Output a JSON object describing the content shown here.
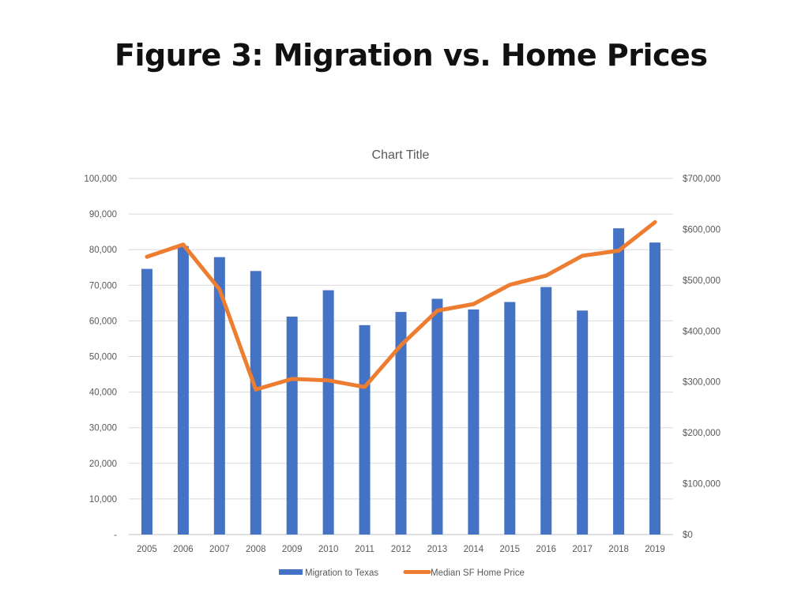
{
  "page_title": "Figure 3: Migration vs. Home Prices",
  "chart_data": {
    "type": "bar+line",
    "title": "Chart Title",
    "categories": [
      "2005",
      "2006",
      "2007",
      "2008",
      "2009",
      "2010",
      "2011",
      "2012",
      "2013",
      "2014",
      "2015",
      "2016",
      "2017",
      "2018",
      "2019"
    ],
    "series": [
      {
        "name": "Migration to Texas",
        "type": "bar",
        "axis": "left",
        "color": "#4472C4",
        "values": [
          74600,
          81000,
          77900,
          74000,
          61200,
          68600,
          58800,
          62500,
          66200,
          63200,
          65300,
          69500,
          62900,
          86000,
          82000
        ]
      },
      {
        "name": "Median SF Home Price",
        "type": "line",
        "axis": "right",
        "color": "#ED7D31",
        "values": [
          546000,
          570000,
          482000,
          285000,
          306000,
          303000,
          290000,
          372000,
          440000,
          453000,
          491000,
          509000,
          548000,
          558000,
          614000
        ]
      }
    ],
    "left_axis": {
      "ylim": [
        0,
        100000
      ],
      "tick_labels": [
        "-",
        "10,000",
        "20,000",
        "30,000",
        "40,000",
        "50,000",
        "60,000",
        "70,000",
        "80,000",
        "90,000",
        "100,000"
      ]
    },
    "right_axis": {
      "ylim": [
        0,
        700000
      ],
      "tick_labels": [
        "$0",
        "$100,000",
        "$200,000",
        "$300,000",
        "$400,000",
        "$500,000",
        "$600,000",
        "$700,000"
      ]
    },
    "grid": true,
    "legend": "bottom"
  }
}
